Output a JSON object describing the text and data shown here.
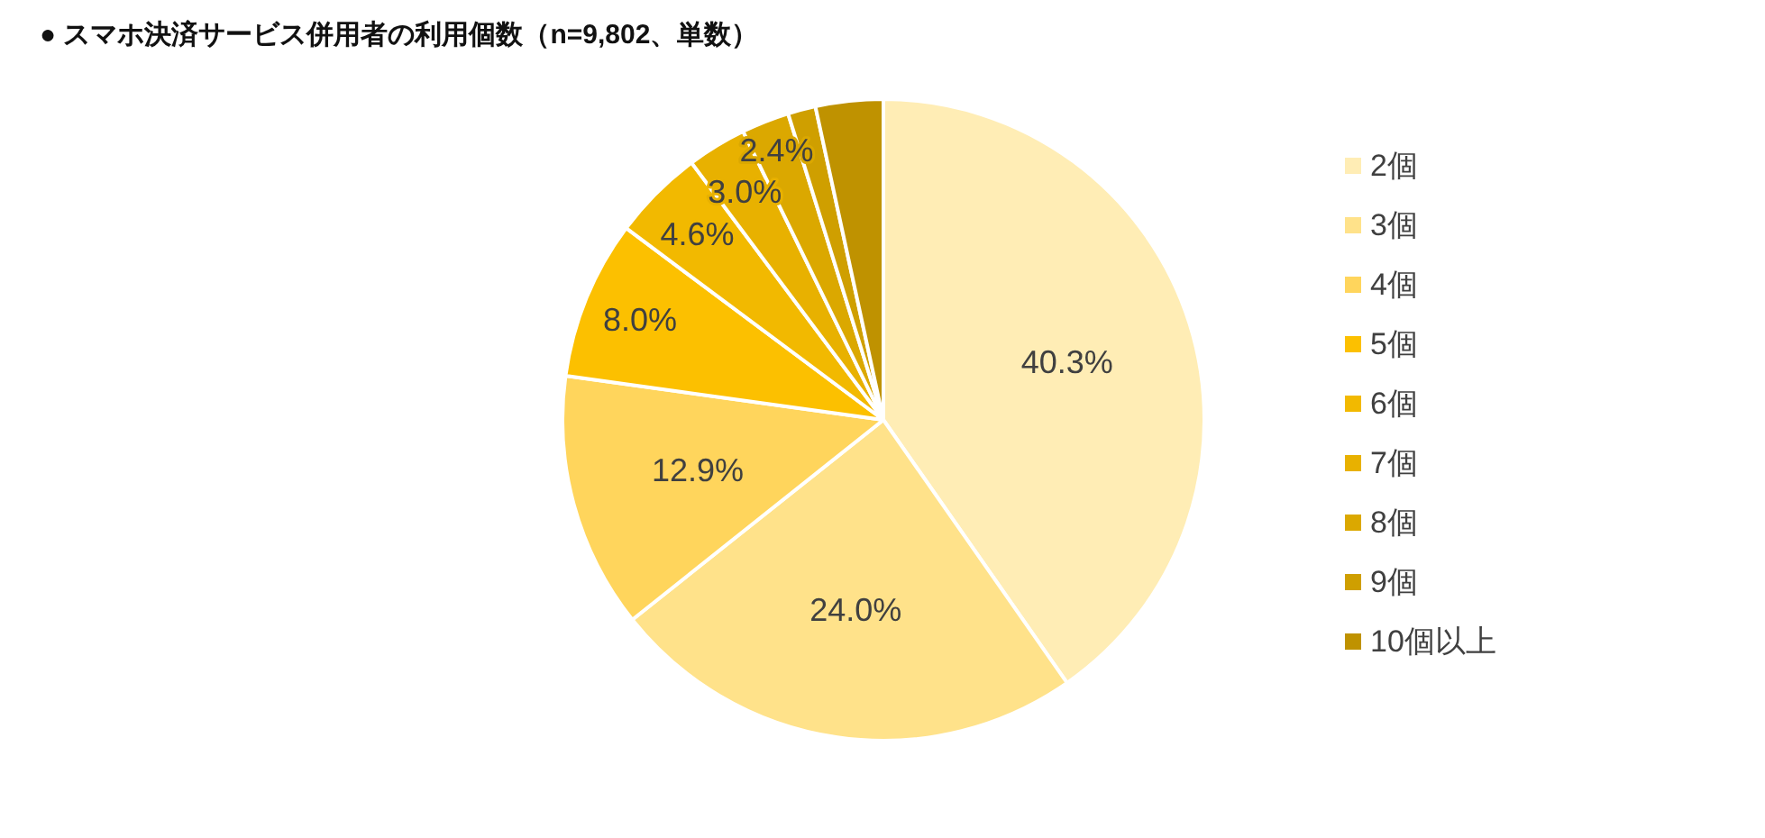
{
  "chart_data": {
    "type": "pie",
    "title": "● スマホ決済サービス併用者の利用個数（n=9,802、単数）",
    "categories": [
      "2個",
      "3個",
      "4個",
      "5個",
      "6個",
      "7個",
      "8個",
      "9個",
      "10個以上"
    ],
    "values": [
      40.3,
      24.0,
      12.9,
      8.0,
      4.6,
      3.0,
      2.4,
      1.4,
      3.4
    ],
    "value_labels": [
      "40.3%",
      "24.0%",
      "12.9%",
      "8.0%",
      "4.6%",
      "3.0%",
      "2.4%",
      null,
      null
    ],
    "colors": [
      "#ffedb5",
      "#ffe28a",
      "#ffd55c",
      "#fcc000",
      "#f2b900",
      "#e8b100",
      "#dba800",
      "#cf9f00",
      "#bf9200"
    ],
    "legend": "right"
  }
}
